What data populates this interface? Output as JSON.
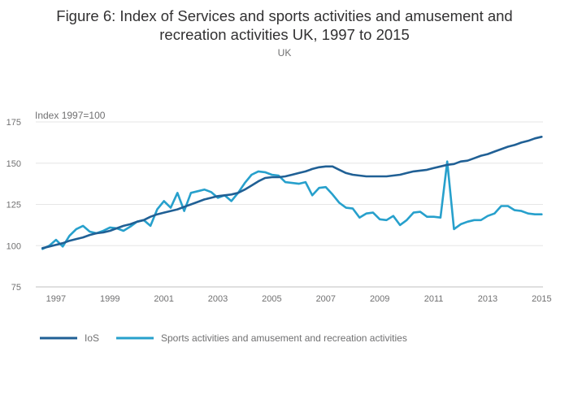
{
  "chart_data": {
    "type": "line",
    "title_line1": "Figure 6: Index of Services and sports activities and amusement and",
    "title_line2": "recreation activities UK, 1997 to 2015",
    "subtitle": "UK",
    "ylabel": "Index 1997=100",
    "xlabel": "",
    "ylim": [
      75,
      175
    ],
    "xlim": [
      1996.25,
      2015.05
    ],
    "yticks": [
      75,
      100,
      125,
      150,
      175
    ],
    "xticks": [
      1997,
      1999,
      2001,
      2003,
      2005,
      2007,
      2009,
      2011,
      2013,
      2015
    ],
    "grid": true,
    "legend_position": "bottom-left",
    "series": [
      {
        "name": "IoS",
        "color": "#206095",
        "x": [
          1996.5,
          1996.75,
          1997,
          1997.25,
          1997.5,
          1997.75,
          1998,
          1998.25,
          1998.5,
          1998.75,
          1999,
          1999.25,
          1999.5,
          1999.75,
          2000,
          2000.25,
          2000.5,
          2000.75,
          2001,
          2001.25,
          2001.5,
          2001.75,
          2002,
          2002.25,
          2002.5,
          2002.75,
          2003,
          2003.25,
          2003.5,
          2003.75,
          2004,
          2004.25,
          2004.5,
          2004.75,
          2005,
          2005.25,
          2005.5,
          2005.75,
          2006,
          2006.25,
          2006.5,
          2006.75,
          2007,
          2007.25,
          2007.5,
          2007.75,
          2008,
          2008.25,
          2008.5,
          2008.75,
          2009,
          2009.25,
          2009.5,
          2009.75,
          2010,
          2010.25,
          2010.5,
          2010.75,
          2011,
          2011.25,
          2011.5,
          2011.75,
          2012,
          2012.25,
          2012.5,
          2012.75,
          2013,
          2013.25,
          2013.5,
          2013.75,
          2014,
          2014.25,
          2014.5,
          2014.75,
          2015
        ],
        "values": [
          98.5,
          99.5,
          100.5,
          101.5,
          103,
          104,
          105,
          106.5,
          107.5,
          108,
          109,
          110.5,
          112,
          113,
          114.5,
          115.5,
          117.5,
          119,
          120,
          121,
          122,
          123.5,
          125,
          126.5,
          128,
          129,
          130,
          130.5,
          131,
          132,
          134,
          136.5,
          139,
          141,
          141.5,
          141.5,
          142,
          143,
          144,
          145,
          146.5,
          147.5,
          148,
          148,
          146,
          144,
          143,
          142.5,
          142,
          142,
          142,
          142,
          142.5,
          143,
          144,
          145,
          145.5,
          146,
          147,
          148,
          149,
          149.5,
          151,
          151.5,
          153,
          154.5,
          155.5,
          157,
          158.5,
          160,
          161,
          162.5,
          163.5,
          165,
          166
        ]
      },
      {
        "name": "Sports activities and amusement and recreation activities",
        "color": "#27a0cc",
        "x": [
          1996.5,
          1996.75,
          1997,
          1997.25,
          1997.5,
          1997.75,
          1998,
          1998.25,
          1998.5,
          1998.75,
          1999,
          1999.25,
          1999.5,
          1999.75,
          2000,
          2000.25,
          2000.5,
          2000.75,
          2001,
          2001.25,
          2001.5,
          2001.75,
          2002,
          2002.25,
          2002.5,
          2002.75,
          2003,
          2003.25,
          2003.5,
          2003.75,
          2004,
          2004.25,
          2004.5,
          2004.75,
          2005,
          2005.25,
          2005.5,
          2005.75,
          2006,
          2006.25,
          2006.5,
          2006.75,
          2007,
          2007.25,
          2007.5,
          2007.75,
          2008,
          2008.25,
          2008.5,
          2008.75,
          2009,
          2009.25,
          2009.5,
          2009.75,
          2010,
          2010.25,
          2010.5,
          2010.75,
          2011,
          2011.25,
          2011.5,
          2011.75,
          2012,
          2012.25,
          2012.5,
          2012.75,
          2013,
          2013.25,
          2013.5,
          2013.75,
          2014,
          2014.25,
          2014.5,
          2014.75,
          2015
        ],
        "values": [
          98,
          100,
          103.5,
          99.5,
          106,
          110,
          112,
          108.5,
          107.5,
          109,
          111,
          110.5,
          109,
          111.5,
          114.5,
          115.5,
          112,
          122,
          127,
          123,
          132,
          121,
          132,
          133,
          134,
          132.5,
          129,
          130.5,
          127,
          132,
          138,
          143,
          145,
          144.5,
          143,
          142.5,
          138.5,
          138,
          137.5,
          138.5,
          130.5,
          135,
          135.5,
          131,
          126,
          123,
          122.5,
          117,
          119.5,
          120,
          116,
          115.5,
          118,
          112.5,
          115.5,
          120,
          120.5,
          117.5,
          117.5,
          117,
          151,
          110,
          113,
          114.5,
          115.5,
          115.5,
          118,
          119.5,
          124,
          124,
          121.5,
          121,
          119.5,
          119,
          119
        ]
      }
    ]
  }
}
